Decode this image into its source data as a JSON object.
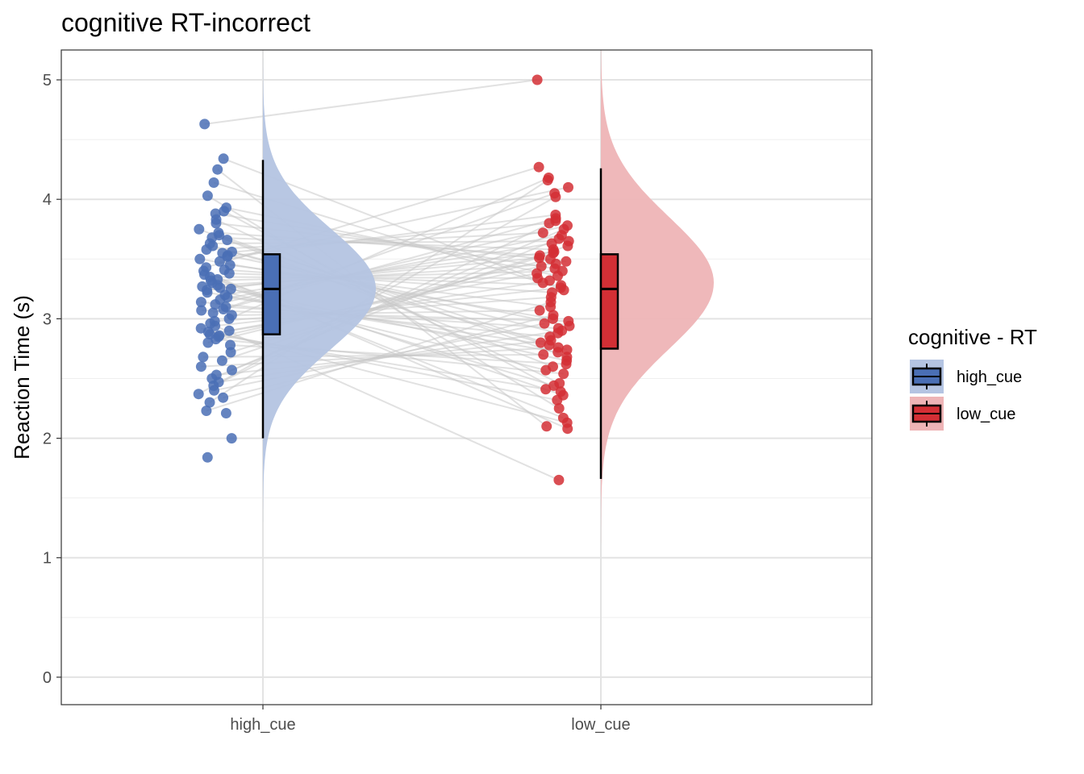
{
  "chart_data": {
    "type": "raincloud",
    "title": "cognitive RT-incorrect",
    "xlabel": "",
    "ylabel": "Reaction Time (s)",
    "categories": [
      "high_cue",
      "low_cue"
    ],
    "ylim": [
      -0.23,
      5.25
    ],
    "yticks": [
      0,
      1,
      2,
      3,
      4,
      5
    ],
    "grid": true,
    "legend": {
      "title": "cognitive  - RT",
      "placement": "right",
      "entries": [
        "high_cue",
        "low_cue"
      ]
    },
    "series": [
      {
        "name": "high_cue",
        "color": "#4a6fb5",
        "boxplot": {
          "whisker_low": 2.0,
          "q1": 2.87,
          "median": 3.25,
          "q3": 3.54,
          "whisker_high": 4.33
        },
        "density": {
          "mean": 3.25,
          "sd": 0.5,
          "range": [
            1.3,
            5.18
          ]
        },
        "points": [
          4.63,
          4.34,
          4.25,
          4.14,
          4.03,
          3.93,
          3.9,
          3.88,
          3.83,
          3.8,
          3.75,
          3.72,
          3.7,
          3.68,
          3.66,
          3.63,
          3.61,
          3.58,
          3.56,
          3.55,
          3.53,
          3.52,
          3.5,
          3.48,
          3.45,
          3.43,
          3.41,
          3.4,
          3.38,
          3.37,
          3.35,
          3.33,
          3.32,
          3.3,
          3.28,
          3.27,
          3.26,
          3.25,
          3.24,
          3.22,
          3.2,
          3.18,
          3.16,
          3.14,
          3.12,
          3.1,
          3.08,
          3.07,
          3.05,
          3.03,
          3.0,
          2.98,
          2.96,
          2.94,
          2.92,
          2.9,
          2.89,
          2.87,
          2.86,
          2.85,
          2.83,
          2.8,
          2.78,
          2.72,
          2.68,
          2.65,
          2.6,
          2.57,
          2.53,
          2.5,
          2.47,
          2.44,
          2.4,
          2.37,
          2.34,
          2.3,
          2.23,
          2.21,
          2.0,
          1.84
        ]
      },
      {
        "name": "low_cue",
        "color": "#d32f35",
        "boxplot": {
          "whisker_low": 1.66,
          "q1": 2.75,
          "median": 3.25,
          "q3": 3.54,
          "whisker_high": 4.26
        },
        "density": {
          "mean": 3.3,
          "sd": 0.55,
          "range": [
            1.0,
            5.25
          ]
        },
        "points": [
          5.0,
          4.27,
          4.18,
          4.16,
          4.1,
          4.05,
          4.02,
          3.87,
          3.84,
          3.82,
          3.8,
          3.78,
          3.75,
          3.72,
          3.7,
          3.67,
          3.65,
          3.63,
          3.61,
          3.58,
          3.56,
          3.55,
          3.53,
          3.51,
          3.5,
          3.48,
          3.46,
          3.44,
          3.42,
          3.4,
          3.38,
          3.36,
          3.34,
          3.32,
          3.3,
          3.28,
          3.26,
          3.24,
          3.22,
          3.18,
          3.14,
          3.1,
          3.07,
          3.03,
          3.0,
          2.98,
          2.96,
          2.94,
          2.92,
          2.9,
          2.88,
          2.85,
          2.82,
          2.8,
          2.78,
          2.76,
          2.74,
          2.72,
          2.7,
          2.68,
          2.65,
          2.62,
          2.6,
          2.57,
          2.54,
          2.46,
          2.44,
          2.41,
          2.39,
          2.36,
          2.32,
          2.25,
          2.17,
          2.13,
          2.1,
          2.08,
          1.65
        ]
      }
    ]
  }
}
